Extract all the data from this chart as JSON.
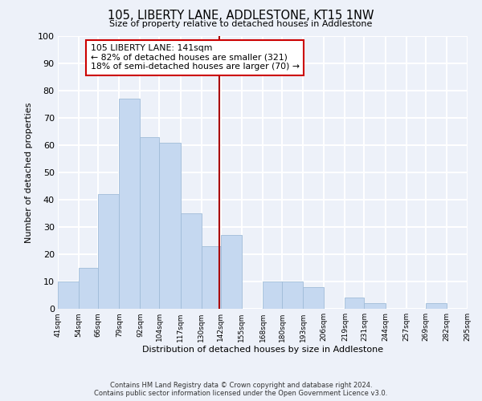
{
  "title": "105, LIBERTY LANE, ADDLESTONE, KT15 1NW",
  "subtitle": "Size of property relative to detached houses in Addlestone",
  "xlabel": "Distribution of detached houses by size in Addlestone",
  "ylabel": "Number of detached properties",
  "footer_line1": "Contains HM Land Registry data © Crown copyright and database right 2024.",
  "footer_line2": "Contains public sector information licensed under the Open Government Licence v3.0.",
  "bar_edges": [
    41,
    54,
    66,
    79,
    92,
    104,
    117,
    130,
    142,
    155,
    168,
    180,
    193,
    206,
    219,
    231,
    244,
    257,
    269,
    282,
    295
  ],
  "bar_heights": [
    10,
    15,
    42,
    77,
    63,
    61,
    35,
    23,
    27,
    0,
    10,
    10,
    8,
    0,
    4,
    2,
    0,
    0,
    2,
    0,
    0
  ],
  "bar_color": "#c5d8f0",
  "bar_edgecolor": "#a0bcd8",
  "property_size": 141,
  "vline_color": "#aa0000",
  "annotation_title": "105 LIBERTY LANE: 141sqm",
  "annotation_line1": "← 82% of detached houses are smaller (321)",
  "annotation_line2": "18% of semi-detached houses are larger (70) →",
  "annotation_box_edgecolor": "#cc0000",
  "annotation_box_facecolor": "#ffffff",
  "ylim": [
    0,
    100
  ],
  "tick_labels": [
    "41sqm",
    "54sqm",
    "66sqm",
    "79sqm",
    "92sqm",
    "104sqm",
    "117sqm",
    "130sqm",
    "142sqm",
    "155sqm",
    "168sqm",
    "180sqm",
    "193sqm",
    "206sqm",
    "219sqm",
    "231sqm",
    "244sqm",
    "257sqm",
    "269sqm",
    "282sqm",
    "295sqm"
  ],
  "background_color": "#edf1f9",
  "grid_color": "#ffffff",
  "plot_bg_color": "#edf1f9"
}
